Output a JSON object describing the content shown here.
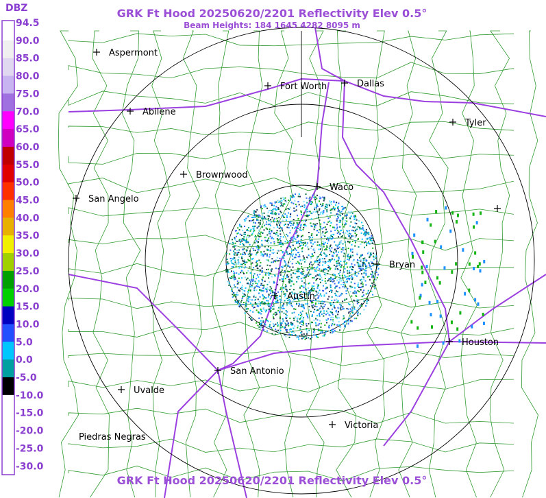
{
  "header": {
    "title": "GRK Ft Hood 20250620/2201 Reflectivity Elev 0.5°",
    "subtitle": "Beam Heights: 184 1645 4282 8095 m"
  },
  "footer": {
    "title": "GRK Ft Hood 20250620/2201 Reflectivity Elev 0.5°"
  },
  "legend": {
    "title": "DBZ",
    "labels": [
      "94.5",
      "90.0",
      "85.0",
      "80.0",
      "75.0",
      "70.0",
      "65.0",
      "60.0",
      "55.0",
      "50.0",
      "45.0",
      "40.0",
      "35.0",
      "30.0",
      "25.0",
      "20.0",
      "15.0",
      "10.0",
      "5.0",
      "0.0",
      "-5.0",
      "-10.0",
      "-15.0",
      "-20.0",
      "-25.0",
      "-30.0"
    ]
  },
  "cities": [
    "Aspermont",
    "Abilene",
    "Fort Worth",
    "Dallas",
    "Tyler",
    "Brownwood",
    "Waco",
    "San Angelo",
    "Bryan",
    "Austin",
    "Houston",
    "San Antonio",
    "Uvalde",
    "Victoria",
    "Piedras Negras"
  ]
}
